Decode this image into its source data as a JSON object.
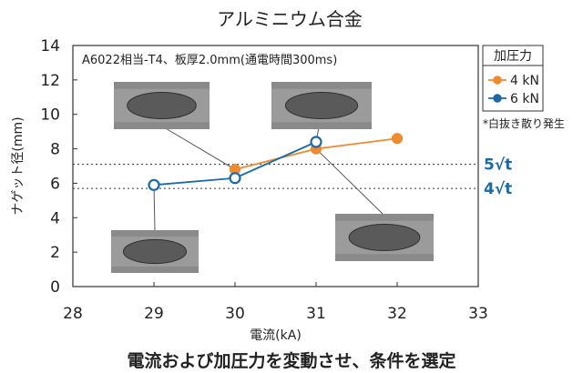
{
  "chart_data": {
    "type": "line",
    "title": "アルミニウム合金",
    "annotation": "A6022相当-T4、板厚2.0mm(通電時間300ms)",
    "xlabel": "電流(kA)",
    "ylabel": "ナゲット径(mm)",
    "xlim": [
      28,
      33
    ],
    "ylim": [
      0,
      14
    ],
    "xticks": [
      28,
      29,
      30,
      31,
      32,
      33
    ],
    "yticks": [
      0,
      2,
      4,
      6,
      8,
      10,
      12,
      14
    ],
    "legend_title": "加圧力",
    "legend_position": "top-right",
    "grid": false,
    "series": [
      {
        "name": "4 kN",
        "color": "#f08a2e",
        "x": [
          30,
          31,
          32
        ],
        "y": [
          6.8,
          8.0,
          8.6
        ],
        "hollow": [
          false,
          false,
          false
        ]
      },
      {
        "name": "6 kN",
        "color": "#1a6aa8",
        "x": [
          29,
          30,
          31
        ],
        "y": [
          5.9,
          6.3,
          8.4
        ],
        "hollow": [
          true,
          true,
          true
        ]
      }
    ],
    "reference_lines": [
      {
        "y": 7.1,
        "label": "5√t"
      },
      {
        "y": 5.7,
        "label": "4√t"
      }
    ],
    "note": "*白抜き散り発生",
    "caption": "電流および加圧力を変動させ、条件を選定"
  }
}
